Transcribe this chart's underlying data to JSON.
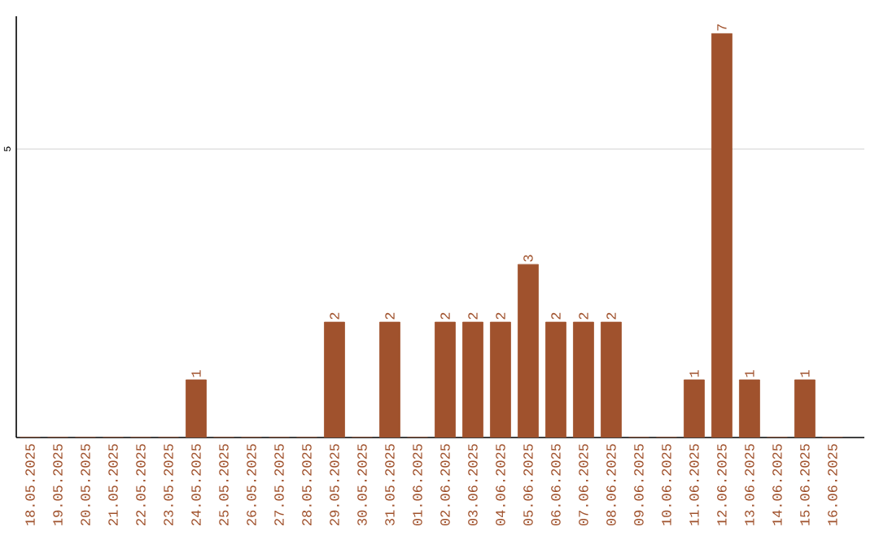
{
  "chart_data": {
    "type": "bar",
    "categories": [
      "18.05.2025",
      "19.05.2025",
      "20.05.2025",
      "21.05.2025",
      "22.05.2025",
      "23.05.2025",
      "24.05.2025",
      "25.05.2025",
      "26.05.2025",
      "27.05.2025",
      "28.05.2025",
      "29.05.2025",
      "30.05.2025",
      "31.05.2025",
      "01.06.2025",
      "02.06.2025",
      "03.06.2025",
      "04.06.2025",
      "05.06.2025",
      "06.06.2025",
      "07.06.2025",
      "08.06.2025",
      "09.06.2025",
      "10.06.2025",
      "11.06.2025",
      "12.06.2025",
      "13.06.2025",
      "14.06.2025",
      "15.06.2025",
      "16.06.2025"
    ],
    "values": [
      0,
      0,
      0,
      0,
      0,
      0,
      1,
      0,
      0,
      0,
      0,
      2,
      0,
      2,
      0,
      2,
      2,
      2,
      3,
      2,
      2,
      2,
      0,
      0,
      1,
      7,
      1,
      0,
      1,
      0
    ],
    "value_labels": [
      null,
      null,
      null,
      null,
      null,
      null,
      "1",
      null,
      null,
      null,
      null,
      "2",
      null,
      "2",
      null,
      "2",
      "2",
      "2",
      "3",
      "2",
      "2",
      "2",
      null,
      null,
      "1",
      "7",
      "1",
      null,
      "1",
      null
    ],
    "color": "#a0522d",
    "ylim": [
      0,
      7.3
    ],
    "yticks": [
      5
    ],
    "grid": "y"
  }
}
